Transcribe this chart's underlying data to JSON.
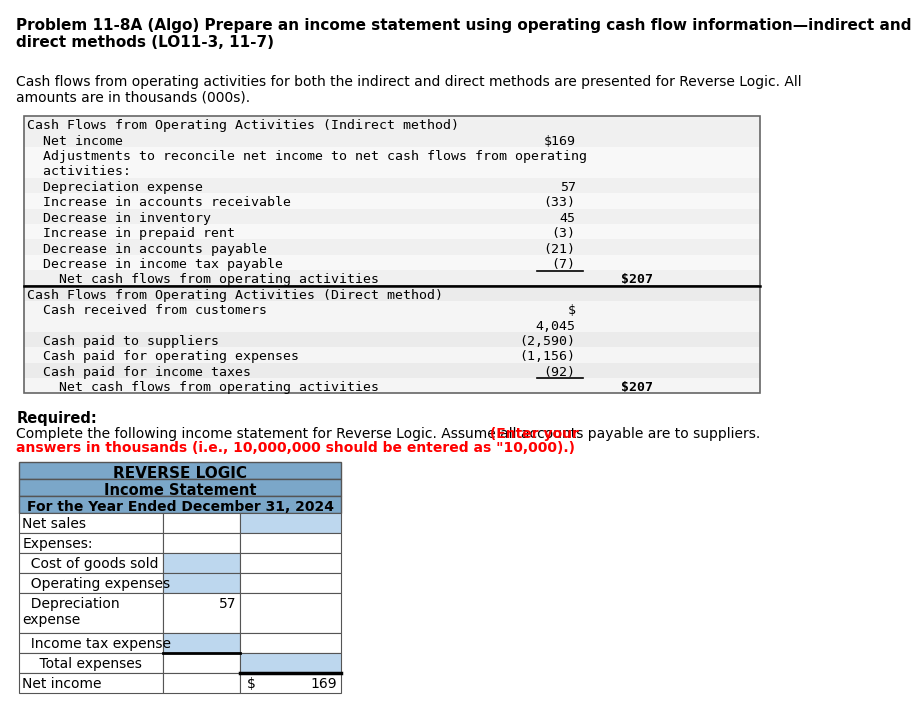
{
  "title": "Problem 11-8A (Algo) Prepare an income statement using operating cash flow information—indirect and\ndirect methods (LO11-3, 11-7)",
  "intro": "Cash flows from operating activities for both the indirect and direct methods are presented for Reverse Logic. All\namounts are in thousands (000s).",
  "indirect_header": "Cash Flows from Operating Activities (Indirect method)",
  "indirect_rows": [
    {
      "label": "  Net income",
      "val1": "$169",
      "val2": ""
    },
    {
      "label": "  Adjustments to reconcile net income to net cash flows from operating\n  activities:",
      "val1": "",
      "val2": ""
    },
    {
      "label": "  Depreciation expense",
      "val1": "57",
      "val2": ""
    },
    {
      "label": "  Increase in accounts receivable",
      "val1": "(33)",
      "val2": ""
    },
    {
      "label": "  Decrease in inventory",
      "val1": "45",
      "val2": ""
    },
    {
      "label": "  Increase in prepaid rent",
      "val1": "(3)",
      "val2": ""
    },
    {
      "label": "  Decrease in accounts payable",
      "val1": "(21)",
      "val2": ""
    },
    {
      "label": "  Decrease in income tax payable",
      "val1": "(7)",
      "val2": ""
    },
    {
      "label": "    Net cash flows from operating activities",
      "val1": "",
      "val2": "$207"
    }
  ],
  "direct_header": "Cash Flows from Operating Activities (Direct method)",
  "direct_rows": [
    {
      "label": "  Cash received from customers",
      "val1": "$\n4,045",
      "val2": ""
    },
    {
      "label": "  Cash paid to suppliers",
      "val1": "(2,590)",
      "val2": ""
    },
    {
      "label": "  Cash paid for operating expenses",
      "val1": "(1,156)",
      "val2": ""
    },
    {
      "label": "  Cash paid for income taxes",
      "val1": "(92)",
      "val2": ""
    },
    {
      "label": "    Net cash flows from operating activities",
      "val1": "",
      "val2": "$207"
    }
  ],
  "required_label": "Required:",
  "required_normal": "Complete the following income statement for Reverse Logic. Assume all accounts payable are to suppliers.",
  "required_bold_line1": " (Enter your",
  "required_bold_line2": "answers in thousands (i.e., 10,000,000 should be entered as \"10,000).)",
  "table_h1": "REVERSE LOGIC",
  "table_h2": "Income Statement",
  "table_h3": "For the Year Ended December 31, 2024",
  "table_rows": [
    {
      "label": "Net sales",
      "indent": 0,
      "v1": "",
      "v2": "",
      "blue1": false,
      "blue2": true,
      "double_top2": false
    },
    {
      "label": "Expenses:",
      "indent": 0,
      "v1": "",
      "v2": "",
      "blue1": false,
      "blue2": false,
      "double_top2": false
    },
    {
      "label": "  Cost of goods sold",
      "indent": 1,
      "v1": "",
      "v2": "",
      "blue1": true,
      "blue2": false,
      "double_top2": false
    },
    {
      "label": "  Operating expenses",
      "indent": 1,
      "v1": "",
      "v2": "",
      "blue1": true,
      "blue2": false,
      "double_top2": false
    },
    {
      "label": "  Depreciation\nexpense",
      "indent": 1,
      "v1": "57",
      "v2": "",
      "blue1": false,
      "blue2": false,
      "double_top2": false
    },
    {
      "label": "  Income tax expense",
      "indent": 1,
      "v1": "",
      "v2": "",
      "blue1": true,
      "blue2": false,
      "double_top2": false
    },
    {
      "label": "    Total expenses",
      "indent": 2,
      "v1": "",
      "v2": "",
      "blue1": false,
      "blue2": true,
      "double_top2": false
    },
    {
      "label": "Net income",
      "indent": 0,
      "v1": "",
      "v2": "169",
      "blue1": false,
      "blue2": false,
      "double_top2": true
    }
  ],
  "bg": "#FFFFFF",
  "gray_light": "#F0F0F0",
  "gray_mid": "#E8E8E8",
  "header_blue": "#7BA7C9",
  "cell_blue": "#BDD7EE",
  "mono": "monospace",
  "sans": "DejaVu Sans"
}
